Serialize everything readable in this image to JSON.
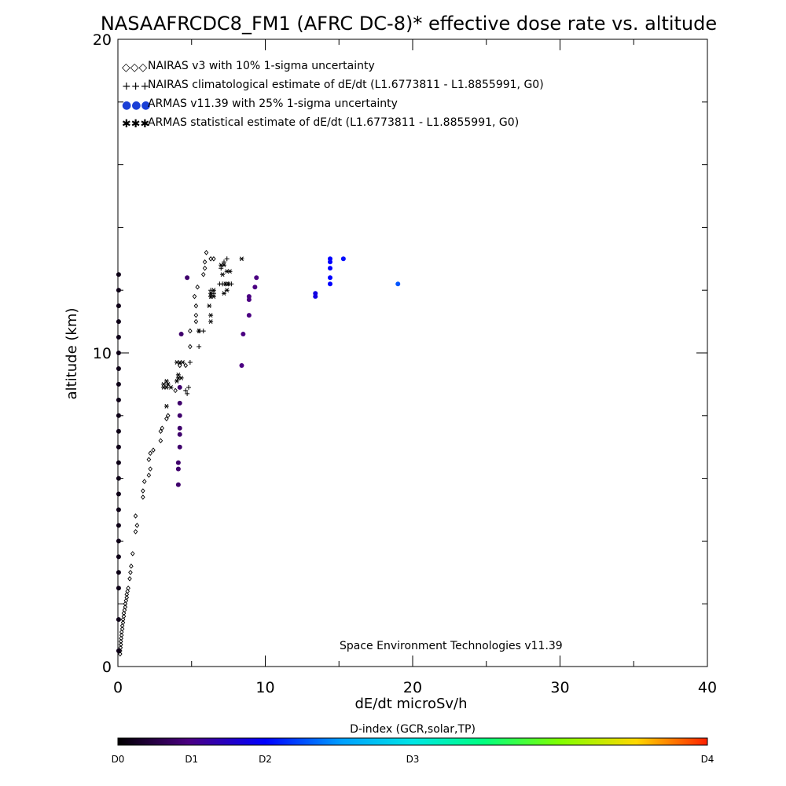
{
  "chart_data": {
    "type": "scatter",
    "title": "NASAAFRCDC8_FM1 (AFRC DC-8)* effective dose rate vs. altitude",
    "xlabel": "dE/dt microSv/h",
    "ylabel": "altitude (km)",
    "xlim": [
      0,
      40
    ],
    "ylim": [
      0,
      20
    ],
    "x_ticks": [
      "0",
      "10",
      "20",
      "30",
      "40"
    ],
    "y_ticks": [
      "0",
      "10",
      "20"
    ],
    "x_minor_step": 5,
    "y_minor_step": 2,
    "credit": "Space Environment Technologies v11.39",
    "legend": [
      {
        "symbol": "◇◇◇",
        "label": "NAIRAS v3 with 10% 1-sigma uncertainty"
      },
      {
        "symbol": "+++",
        "label": "NAIRAS climatological estimate of dE/dt (L1.6773811 - L1.8855991, G0)"
      },
      {
        "symbol": "●●●",
        "label": "ARMAS v11.39 with 25% 1-sigma uncertainty",
        "color": "#1a3fd6"
      },
      {
        "symbol": "✱✱✱",
        "label": "ARMAS statistical estimate of dE/dt (L1.6773811 - L1.8855991, G0)"
      }
    ],
    "colorbar": {
      "title": "D-index (GCR,solar,TP)",
      "labels": [
        "D0",
        "D1",
        "D2",
        "D3",
        "D4"
      ],
      "label_positions": [
        0,
        0.125,
        0.25,
        0.5,
        1.0
      ]
    },
    "series": [
      {
        "name": "NAIRAS v3 with 10% 1-sigma uncertainty",
        "marker": "diamond",
        "points": [
          [
            0.15,
            0.4
          ],
          [
            0.15,
            0.5
          ],
          [
            0.18,
            0.6
          ],
          [
            0.2,
            0.7
          ],
          [
            0.2,
            0.8
          ],
          [
            0.22,
            0.9
          ],
          [
            0.25,
            1.0
          ],
          [
            0.25,
            1.1
          ],
          [
            0.3,
            1.2
          ],
          [
            0.3,
            1.3
          ],
          [
            0.35,
            1.4
          ],
          [
            0.35,
            1.5
          ],
          [
            0.4,
            1.6
          ],
          [
            0.4,
            1.7
          ],
          [
            0.45,
            1.8
          ],
          [
            0.5,
            1.9
          ],
          [
            0.5,
            2.0
          ],
          [
            0.55,
            2.1
          ],
          [
            0.6,
            2.2
          ],
          [
            0.6,
            2.3
          ],
          [
            0.65,
            2.4
          ],
          [
            0.7,
            2.5
          ],
          [
            0.8,
            2.8
          ],
          [
            0.85,
            3.0
          ],
          [
            0.9,
            3.2
          ],
          [
            1.0,
            3.6
          ],
          [
            1.2,
            4.3
          ],
          [
            1.3,
            4.5
          ],
          [
            1.2,
            4.8
          ],
          [
            1.7,
            5.4
          ],
          [
            1.7,
            5.6
          ],
          [
            1.8,
            5.9
          ],
          [
            2.1,
            6.1
          ],
          [
            2.2,
            6.3
          ],
          [
            2.1,
            6.6
          ],
          [
            2.2,
            6.8
          ],
          [
            2.4,
            6.9
          ],
          [
            2.9,
            7.2
          ],
          [
            2.9,
            7.5
          ],
          [
            3.0,
            7.6
          ],
          [
            3.3,
            7.9
          ],
          [
            3.4,
            8.0
          ],
          [
            3.9,
            8.8
          ],
          [
            4.2,
            9.6
          ],
          [
            4.6,
            9.6
          ],
          [
            4.9,
            10.2
          ],
          [
            4.9,
            10.7
          ],
          [
            5.3,
            11.0
          ],
          [
            5.3,
            11.2
          ],
          [
            5.3,
            11.5
          ],
          [
            5.2,
            11.8
          ],
          [
            5.4,
            12.1
          ],
          [
            5.8,
            12.5
          ],
          [
            5.9,
            12.7
          ],
          [
            5.9,
            12.9
          ],
          [
            6.3,
            13.0
          ],
          [
            6.5,
            13.0
          ],
          [
            6.0,
            13.2
          ]
        ]
      },
      {
        "name": "NAIRAS climatological estimate of dE/dt (L1.6773811 - L1.8855991, G0)",
        "marker": "plus",
        "points": [
          [
            4.7,
            8.7
          ],
          [
            4.6,
            8.8
          ],
          [
            4.8,
            8.9
          ],
          [
            4.9,
            9.7
          ],
          [
            5.5,
            10.2
          ],
          [
            5.5,
            10.7
          ],
          [
            5.8,
            10.7
          ],
          [
            6.3,
            11.8
          ],
          [
            6.5,
            11.9
          ],
          [
            6.3,
            12.0
          ],
          [
            6.9,
            12.2
          ],
          [
            7.1,
            12.2
          ],
          [
            7.3,
            12.2
          ],
          [
            7.5,
            12.2
          ],
          [
            7.7,
            12.2
          ],
          [
            7.0,
            12.7
          ],
          [
            7.2,
            12.9
          ],
          [
            7.4,
            13.0
          ]
        ]
      },
      {
        "name": "ARMAS statistical estimate of dE/dt (L1.6773811 - L1.8855991, G0)",
        "marker": "asterisk",
        "points": [
          [
            3.3,
            8.3
          ],
          [
            3.1,
            8.9
          ],
          [
            3.3,
            8.9
          ],
          [
            3.6,
            8.9
          ],
          [
            3.1,
            9.0
          ],
          [
            3.4,
            9.0
          ],
          [
            3.3,
            9.1
          ],
          [
            4.0,
            9.1
          ],
          [
            4.1,
            9.2
          ],
          [
            4.3,
            9.2
          ],
          [
            4.1,
            9.3
          ],
          [
            4.0,
            9.7
          ],
          [
            4.2,
            9.7
          ],
          [
            4.4,
            9.7
          ],
          [
            5.5,
            10.7
          ],
          [
            6.3,
            11.0
          ],
          [
            6.3,
            11.2
          ],
          [
            6.2,
            11.5
          ],
          [
            6.3,
            11.8
          ],
          [
            6.5,
            11.8
          ],
          [
            6.3,
            11.9
          ],
          [
            6.5,
            12.0
          ],
          [
            7.3,
            12.2
          ],
          [
            7.5,
            12.2
          ],
          [
            7.1,
            12.5
          ],
          [
            7.4,
            12.6
          ],
          [
            7.6,
            12.6
          ],
          [
            7.0,
            12.8
          ],
          [
            7.2,
            12.8
          ],
          [
            8.4,
            13.0
          ],
          [
            7.4,
            12.0
          ],
          [
            7.2,
            11.9
          ]
        ]
      },
      {
        "name": "ARMAS v11.39 with 25% 1-sigma uncertainty",
        "marker": "dot",
        "points": [
          [
            0.05,
            0.5,
            0.02
          ],
          [
            0.05,
            1.5,
            0.02
          ],
          [
            0.05,
            2.5,
            0.02
          ],
          [
            0.05,
            3.0,
            0.02
          ],
          [
            0.05,
            3.5,
            0.02
          ],
          [
            0.05,
            4.0,
            0.02
          ],
          [
            0.05,
            4.5,
            0.02
          ],
          [
            0.05,
            5.0,
            0.02
          ],
          [
            0.05,
            5.5,
            0.02
          ],
          [
            0.05,
            6.0,
            0.02
          ],
          [
            0.05,
            6.5,
            0.02
          ],
          [
            0.05,
            7.0,
            0.02
          ],
          [
            0.05,
            7.5,
            0.02
          ],
          [
            0.05,
            8.0,
            0.02
          ],
          [
            0.05,
            8.5,
            0.02
          ],
          [
            0.05,
            9.0,
            0.02
          ],
          [
            0.05,
            9.5,
            0.02
          ],
          [
            0.05,
            10.0,
            0.02
          ],
          [
            0.05,
            10.5,
            0.02
          ],
          [
            0.05,
            11.0,
            0.02
          ],
          [
            0.05,
            11.5,
            0.02
          ],
          [
            0.05,
            12.0,
            0.02
          ],
          [
            0.05,
            12.5,
            0.02
          ],
          [
            4.1,
            5.8,
            0.1
          ],
          [
            4.1,
            6.3,
            0.1
          ],
          [
            4.1,
            6.5,
            0.1
          ],
          [
            4.2,
            7.0,
            0.1
          ],
          [
            4.2,
            7.4,
            0.1
          ],
          [
            4.2,
            7.6,
            0.1
          ],
          [
            4.2,
            8.0,
            0.1
          ],
          [
            4.2,
            8.4,
            0.1
          ],
          [
            4.2,
            8.9,
            0.1
          ],
          [
            4.3,
            10.6,
            0.1
          ],
          [
            8.4,
            9.6,
            0.12
          ],
          [
            8.5,
            10.6,
            0.12
          ],
          [
            8.9,
            11.2,
            0.12
          ],
          [
            8.9,
            11.7,
            0.12
          ],
          [
            8.9,
            11.8,
            0.12
          ],
          [
            9.3,
            12.1,
            0.12
          ],
          [
            9.4,
            12.4,
            0.12
          ],
          [
            4.7,
            12.4,
            0.1
          ],
          [
            13.4,
            11.8,
            0.22
          ],
          [
            13.4,
            11.9,
            0.22
          ],
          [
            14.4,
            12.2,
            0.25
          ],
          [
            14.4,
            12.4,
            0.25
          ],
          [
            14.4,
            12.7,
            0.25
          ],
          [
            14.4,
            12.9,
            0.25
          ],
          [
            14.4,
            13.0,
            0.25
          ],
          [
            15.3,
            13.0,
            0.26
          ],
          [
            19.0,
            12.2,
            0.32
          ]
        ]
      }
    ]
  },
  "colors": {
    "background": "#ffffff",
    "axis": "#000000",
    "armas_legend_dot": "#1a3fd6"
  }
}
